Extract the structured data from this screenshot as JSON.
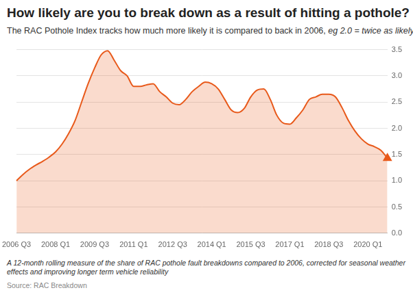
{
  "chart_data": {
    "type": "area",
    "title": "How likely are you to break down as a result of hitting a pothole?",
    "subtitle": [
      "The RAC Pothole Index tracks how much more likely it is compared to back in 2006,",
      "eg 2.0 = twice as likely"
    ],
    "note": "A 12-month rolling measure of the share of RAC pothole fault breakdowns compared to 2006, corrected for seasonal weather effects and improving longer term vehicle reliability",
    "source": "Source: RAC Breakdown",
    "categories": [
      "2006 Q3",
      null,
      null,
      null,
      null,
      null,
      "2008 Q1",
      null,
      null,
      null,
      null,
      null,
      "2009 Q3",
      null,
      null,
      null,
      null,
      null,
      "2011 Q1",
      null,
      null,
      null,
      null,
      null,
      "2012 Q3",
      null,
      null,
      null,
      null,
      null,
      "2014 Q1",
      null,
      null,
      null,
      null,
      null,
      "2015 Q3",
      null,
      null,
      null,
      null,
      null,
      "2017 Q1",
      null,
      null,
      null,
      null,
      null,
      "2018 Q3",
      null,
      null,
      null,
      null,
      null,
      "2020 Q1",
      null,
      null,
      null
    ],
    "values": [
      1.0,
      1.12,
      1.22,
      1.3,
      1.37,
      1.45,
      1.55,
      1.7,
      1.9,
      2.15,
      2.5,
      2.85,
      3.15,
      3.4,
      3.48,
      3.3,
      3.1,
      3.0,
      2.8,
      2.8,
      2.83,
      2.85,
      2.7,
      2.6,
      2.48,
      2.45,
      2.55,
      2.7,
      2.8,
      2.88,
      2.85,
      2.75,
      2.55,
      2.35,
      2.3,
      2.38,
      2.6,
      2.73,
      2.75,
      2.55,
      2.25,
      2.1,
      2.08,
      2.2,
      2.35,
      2.55,
      2.6,
      2.65,
      2.65,
      2.6,
      2.4,
      2.15,
      1.95,
      1.8,
      1.7,
      1.65,
      1.58,
      1.43
    ],
    "color": "#e8591a",
    "marker": "triangle",
    "ylim": [
      0,
      3.5
    ],
    "yticks": [
      {
        "value": 0,
        "label": "0.0"
      },
      {
        "value": 0.5,
        "label": "0.5"
      },
      {
        "value": 1,
        "label": "1.0"
      },
      {
        "value": 1.5,
        "label": "1.5"
      },
      {
        "value": 2,
        "label": "2.0"
      },
      {
        "value": 2.5,
        "label": "2.5"
      },
      {
        "value": 3,
        "label": "3.0"
      },
      {
        "value": 3.5,
        "label": "3.5"
      }
    ],
    "grid": true
  }
}
